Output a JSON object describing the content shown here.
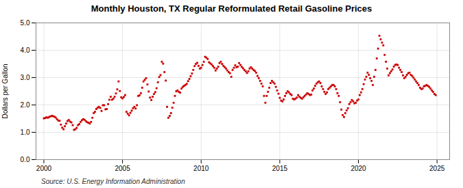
{
  "chart_data": {
    "type": "scatter",
    "title": "Monthly Houston, TX Regular Reformulated Retail Gasoline Prices",
    "ylabel": "Dollars per Gallon",
    "source": "Source: U.S. Energy Information Administration",
    "color": "#cc0000",
    "marker": "square",
    "grid": true,
    "xlim": [
      1999.5,
      2025.8
    ],
    "xticks": [
      2000,
      2005,
      2010,
      2015,
      2020,
      2025
    ],
    "ylim": [
      0.0,
      5.0
    ],
    "yticks": [
      {
        "value": 0,
        "label": "0.0"
      },
      {
        "value": 1,
        "label": "1.0"
      },
      {
        "value": 2,
        "label": "2.0"
      },
      {
        "value": 3,
        "label": "3.0"
      },
      {
        "value": 4,
        "label": "4.0"
      },
      {
        "value": 5,
        "label": "5.0"
      }
    ],
    "x": [
      2000,
      2000.0833,
      2000.1667,
      2000.25,
      2000.3333,
      2000.4167,
      2000.5,
      2000.5833,
      2000.6667,
      2000.75,
      2000.8333,
      2000.9167,
      2001,
      2001.0833,
      2001.1667,
      2001.25,
      2001.3333,
      2001.4167,
      2001.5,
      2001.5833,
      2001.6667,
      2001.75,
      2001.8333,
      2001.9167,
      2002,
      2002.0833,
      2002.1667,
      2002.25,
      2002.3333,
      2002.4167,
      2002.5,
      2002.5833,
      2002.6667,
      2002.75,
      2002.8333,
      2002.9167,
      2003,
      2003.0833,
      2003.1667,
      2003.25,
      2003.3333,
      2003.4167,
      2003.5,
      2003.5833,
      2003.6667,
      2003.75,
      2003.8333,
      2003.9167,
      2004,
      2004.0833,
      2004.1667,
      2004.25,
      2004.3333,
      2004.4167,
      2004.5,
      2004.5833,
      2004.6667,
      2004.75,
      2004.8333,
      2004.9167,
      2005,
      2005.0833,
      2005.1667,
      2005.25,
      2005.3333,
      2005.4167,
      2005.5,
      2005.5833,
      2005.6667,
      2005.75,
      2005.8333,
      2005.9167,
      2006,
      2006.0833,
      2006.1667,
      2006.25,
      2006.3333,
      2006.4167,
      2006.5,
      2006.5833,
      2006.6667,
      2006.75,
      2006.8333,
      2006.9167,
      2007,
      2007.0833,
      2007.1667,
      2007.25,
      2007.3333,
      2007.4167,
      2007.5,
      2007.5833,
      2007.6667,
      2007.75,
      2007.8333,
      2007.9167,
      2008,
      2008.0833,
      2008.1667,
      2008.25,
      2008.3333,
      2008.4167,
      2008.5,
      2008.5833,
      2008.6667,
      2008.75,
      2008.8333,
      2008.9167,
      2009,
      2009.0833,
      2009.1667,
      2009.25,
      2009.3333,
      2009.4167,
      2009.5,
      2009.5833,
      2009.6667,
      2009.75,
      2009.8333,
      2009.9167,
      2010,
      2010.0833,
      2010.1667,
      2010.25,
      2010.3333,
      2010.4167,
      2010.5,
      2010.5833,
      2010.6667,
      2010.75,
      2010.8333,
      2010.9167,
      2011,
      2011.0833,
      2011.1667,
      2011.25,
      2011.3333,
      2011.4167,
      2011.5,
      2011.5833,
      2011.6667,
      2011.75,
      2011.8333,
      2011.9167,
      2012,
      2012.0833,
      2012.1667,
      2012.25,
      2012.3333,
      2012.4167,
      2012.5,
      2012.5833,
      2012.6667,
      2012.75,
      2012.8333,
      2012.9167,
      2013,
      2013.0833,
      2013.1667,
      2013.25,
      2013.3333,
      2013.4167,
      2013.5,
      2013.5833,
      2013.6667,
      2013.75,
      2013.8333,
      2013.9167,
      2014,
      2014.0833,
      2014.1667,
      2014.25,
      2014.3333,
      2014.4167,
      2014.5,
      2014.5833,
      2014.6667,
      2014.75,
      2014.8333,
      2014.9167,
      2015,
      2015.0833,
      2015.1667,
      2015.25,
      2015.3333,
      2015.4167,
      2015.5,
      2015.5833,
      2015.6667,
      2015.75,
      2015.8333,
      2015.9167,
      2016,
      2016.0833,
      2016.1667,
      2016.25,
      2016.3333,
      2016.4167,
      2016.5,
      2016.5833,
      2016.6667,
      2016.75,
      2016.8333,
      2016.9167,
      2017,
      2017.0833,
      2017.1667,
      2017.25,
      2017.3333,
      2017.4167,
      2017.5,
      2017.5833,
      2017.6667,
      2017.75,
      2017.8333,
      2017.9167,
      2018,
      2018.0833,
      2018.1667,
      2018.25,
      2018.3333,
      2018.4167,
      2018.5,
      2018.5833,
      2018.6667,
      2018.75,
      2018.8333,
      2018.9167,
      2019,
      2019.0833,
      2019.1667,
      2019.25,
      2019.3333,
      2019.4167,
      2019.5,
      2019.5833,
      2019.6667,
      2019.75,
      2019.8333,
      2019.9167,
      2020,
      2020.0833,
      2020.1667,
      2020.25,
      2020.3333,
      2020.4167,
      2020.5,
      2020.5833,
      2020.6667,
      2020.75,
      2020.8333,
      2020.9167,
      2021,
      2021.0833,
      2021.1667,
      2021.25,
      2021.3333,
      2021.4167,
      2021.5,
      2021.5833,
      2021.6667,
      2021.75,
      2021.8333,
      2021.9167,
      2022,
      2022.0833,
      2022.1667,
      2022.25,
      2022.3333,
      2022.4167,
      2022.5,
      2022.5833,
      2022.6667,
      2022.75,
      2022.8333,
      2022.9167,
      2023,
      2023.0833,
      2023.1667,
      2023.25,
      2023.3333,
      2023.4167,
      2023.5,
      2023.5833,
      2023.6667,
      2023.75,
      2023.8333,
      2023.9167,
      2024,
      2024.0833,
      2024.1667,
      2024.25,
      2024.3333,
      2024.4167,
      2024.5,
      2024.5833,
      2024.6667,
      2024.75,
      2024.8333,
      2024.9167
    ],
    "values": [
      1.51,
      1.52,
      1.55,
      1.53,
      1.56,
      1.58,
      1.6,
      1.59,
      1.57,
      1.54,
      1.48,
      1.43,
      1.42,
      1.28,
      1.17,
      1.11,
      1.22,
      1.32,
      1.41,
      1.45,
      1.39,
      1.36,
      1.26,
      1.09,
      1.11,
      1.16,
      1.26,
      1.3,
      1.38,
      1.44,
      1.48,
      1.46,
      1.41,
      1.37,
      1.35,
      1.32,
      1.38,
      1.53,
      1.7,
      1.75,
      1.85,
      1.9,
      1.93,
      1.89,
      1.78,
      1.99,
      1.99,
      1.84,
      1.85,
      2.03,
      2.19,
      2.3,
      2.19,
      2.23,
      2.3,
      2.42,
      2.57,
      2.86,
      2.51,
      2.28,
      2.24,
      2.29,
      2.36,
      1.75,
      1.68,
      1.62,
      1.71,
      1.79,
      1.88,
      1.93,
      1.87,
      1.99,
      2.33,
      2.35,
      2.43,
      2.63,
      2.86,
      2.92,
      2.98,
      2.75,
      2.49,
      2.27,
      2.18,
      2.3,
      2.4,
      2.47,
      2.61,
      2.83,
      3.02,
      3.09,
      3.58,
      3.51,
      3.2,
      2.89,
      1.93,
      1.53,
      1.6,
      1.7,
      1.9,
      2.08,
      2.33,
      2.5,
      2.53,
      2.48,
      2.45,
      2.6,
      2.66,
      2.7,
      2.73,
      2.77,
      2.87,
      2.95,
      3.05,
      3.15,
      3.28,
      3.42,
      3.5,
      3.54,
      3.43,
      3.33,
      3.36,
      3.46,
      3.58,
      3.76,
      3.73,
      3.68,
      3.56,
      3.52,
      3.48,
      3.42,
      3.36,
      3.26,
      3.33,
      3.4,
      3.53,
      3.58,
      3.5,
      3.43,
      3.38,
      3.33,
      3.26,
      3.2,
      3.16,
      3.03,
      3.28,
      3.36,
      3.45,
      3.38,
      3.4,
      3.53,
      3.46,
      3.39,
      3.34,
      3.28,
      3.23,
      3.17,
      3.23,
      3.33,
      3.38,
      3.33,
      3.28,
      3.24,
      3.18,
      3.06,
      2.98,
      2.88,
      2.78,
      2.68,
      2.33,
      2.08,
      2.33,
      2.48,
      2.63,
      2.8,
      2.88,
      2.83,
      2.78,
      2.66,
      2.53,
      2.41,
      2.26,
      2.16,
      2.13,
      2.2,
      2.33,
      2.43,
      2.5,
      2.46,
      2.4,
      2.36,
      2.23,
      2.2,
      2.23,
      2.27,
      2.36,
      2.3,
      2.26,
      2.23,
      2.28,
      2.33,
      2.38,
      2.43,
      2.4,
      2.36,
      2.38,
      2.53,
      2.6,
      2.7,
      2.78,
      2.83,
      2.86,
      2.8,
      2.68,
      2.58,
      2.48,
      2.4,
      2.46,
      2.58,
      2.63,
      2.68,
      2.73,
      2.73,
      2.68,
      2.58,
      2.43,
      2.33,
      2.1,
      1.83,
      1.63,
      1.56,
      1.7,
      1.8,
      1.88,
      2.03,
      2.1,
      2.18,
      2.13,
      2.06,
      2.08,
      2.16,
      2.2,
      2.36,
      2.46,
      2.58,
      2.76,
      2.93,
      3.03,
      3.18,
      3.1,
      2.98,
      2.88,
      2.73,
      3.03,
      3.28,
      3.7,
      4.06,
      4.53,
      4.4,
      4.28,
      4.18,
      3.83,
      3.58,
      3.33,
      3.08,
      3.16,
      3.23,
      3.3,
      3.4,
      3.46,
      3.48,
      3.46,
      3.36,
      3.28,
      3.2,
      3.08,
      2.98,
      3.03,
      3.1,
      3.16,
      3.18,
      3.1,
      3.06,
      3.0,
      2.93,
      2.86,
      2.8,
      2.73,
      2.63,
      2.58,
      2.6,
      2.68,
      2.7,
      2.73,
      2.7,
      2.66,
      2.6,
      2.53,
      2.48,
      2.4,
      2.36
    ]
  }
}
